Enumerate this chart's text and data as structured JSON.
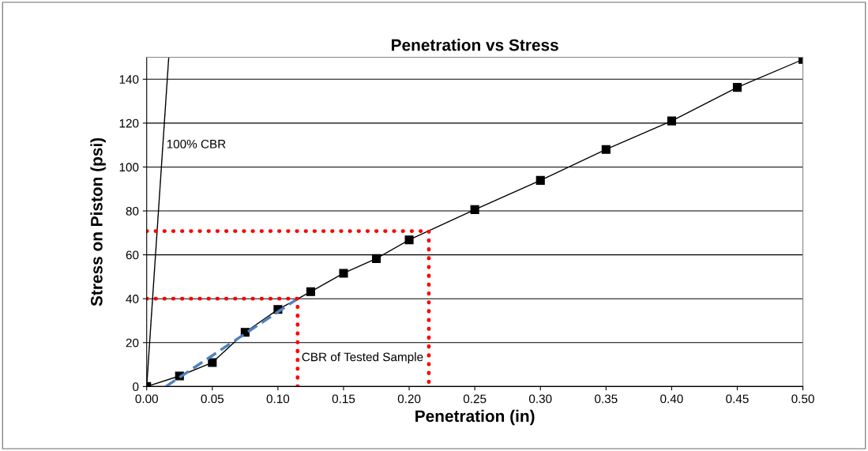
{
  "chart_data": {
    "type": "line",
    "title": "Penetration vs Stress",
    "xlabel": "Penetration (in)",
    "ylabel": "Stress on Piston (psi)",
    "xlim": [
      0,
      0.5
    ],
    "xticks": [
      {
        "value": 0,
        "label": "0.00"
      },
      {
        "value": 0.05,
        "label": "0.05"
      },
      {
        "value": 0.1,
        "label": "0.10"
      },
      {
        "value": 0.15,
        "label": "0.15"
      },
      {
        "value": 0.2,
        "label": "0.20"
      },
      {
        "value": 0.25,
        "label": "0.25"
      },
      {
        "value": 0.3,
        "label": "0.30"
      },
      {
        "value": 0.35,
        "label": "0.35"
      },
      {
        "value": 0.4,
        "label": "0.40"
      },
      {
        "value": 0.45,
        "label": "0.45"
      },
      {
        "value": 0.5,
        "label": "0.50"
      }
    ],
    "ylim": [
      0,
      150
    ],
    "yticks": [
      0,
      20,
      40,
      60,
      80,
      100,
      120,
      140
    ],
    "grid": "y",
    "series": [
      {
        "color": "#000000",
        "marker": "square",
        "line_style": "solid",
        "x": [
          0,
          0.025,
          0.05,
          0.075,
          0.1,
          0.125,
          0.15,
          0.175,
          0.2,
          0.25,
          0.3,
          0.35,
          0.4,
          0.45,
          0.5
        ],
        "values": [
          0,
          4.8,
          10.9,
          24.7,
          35.1,
          43.2,
          51.6,
          58.3,
          66.8,
          80.6,
          93.9,
          108,
          121,
          136.3,
          149
        ]
      },
      {
        "color": "#000000",
        "marker": "none",
        "line_style": "solid",
        "x": [
          0,
          0.0168
        ],
        "values": [
          0,
          150
        ]
      },
      {
        "color": "#4f81bd",
        "marker": "none",
        "line_style": "dashed",
        "x": [
          0.0146,
          0.115
        ],
        "values": [
          0,
          40
        ]
      },
      {
        "color": "#ff0000",
        "marker": "none",
        "line_style": "dotted",
        "x": [
          0,
          0.115,
          0.115
        ],
        "values": [
          40,
          40,
          0
        ]
      },
      {
        "color": "#ff0000",
        "marker": "none",
        "line_style": "dotted",
        "x": [
          0,
          0.215,
          0.215
        ],
        "values": [
          70.8,
          70.8,
          0
        ]
      }
    ],
    "annotations": [
      {
        "text": "100% CBR",
        "x": 0.015,
        "y": 110
      },
      {
        "text": "CBR of Tested Sample",
        "x": 0.118,
        "y": 13
      }
    ]
  }
}
